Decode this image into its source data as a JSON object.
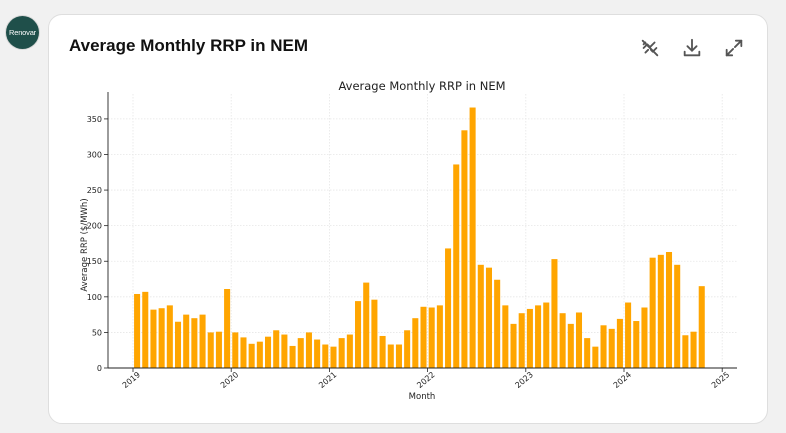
{
  "app": {
    "avatar_text": "Renovar"
  },
  "card": {
    "title": "Average Monthly RRP in NEM"
  },
  "toolbar": {
    "buttons": [
      {
        "name": "hide-chart-button",
        "icon": "chart-off-icon"
      },
      {
        "name": "download-button",
        "icon": "download-icon"
      },
      {
        "name": "expand-button",
        "icon": "expand-icon"
      }
    ]
  },
  "colors": {
    "bar": "#FFA500",
    "grid": "#e6e6e6",
    "axis": "#222222"
  },
  "chart_data": {
    "type": "bar",
    "title": "Average Monthly RRP in NEM",
    "xlabel": "Month",
    "ylabel": "Average RRP ($/MWh)",
    "ylim": [
      0,
      385
    ],
    "yticks": [
      0,
      50,
      100,
      150,
      200,
      250,
      300,
      350
    ],
    "xticks": [
      "2019",
      "2020",
      "2021",
      "2022",
      "2023",
      "2024",
      "2025"
    ],
    "grid": true,
    "series": [
      {
        "x": [
          "2019-01",
          "2019-02",
          "2019-03",
          "2019-04",
          "2019-05",
          "2019-06",
          "2019-07",
          "2019-08",
          "2019-09",
          "2019-10",
          "2019-11",
          "2019-12",
          "2020-01",
          "2020-02",
          "2020-03",
          "2020-04",
          "2020-05",
          "2020-06",
          "2020-07",
          "2020-08",
          "2020-09",
          "2020-10",
          "2020-11",
          "2020-12",
          "2021-01",
          "2021-02",
          "2021-03",
          "2021-04",
          "2021-05",
          "2021-06",
          "2021-07",
          "2021-08",
          "2021-09",
          "2021-10",
          "2021-11",
          "2021-12",
          "2022-01",
          "2022-02",
          "2022-03",
          "2022-04",
          "2022-05",
          "2022-06",
          "2022-07",
          "2022-08",
          "2022-09",
          "2022-10",
          "2022-11",
          "2022-12",
          "2023-01",
          "2023-02",
          "2023-03",
          "2023-04",
          "2023-05",
          "2023-06",
          "2023-07",
          "2023-08",
          "2023-09",
          "2023-10",
          "2023-11",
          "2023-12",
          "2024-01",
          "2024-02",
          "2024-03",
          "2024-04",
          "2024-05",
          "2024-06",
          "2024-07",
          "2024-08",
          "2024-09",
          "2024-10"
        ],
        "values": [
          104,
          107,
          82,
          84,
          88,
          65,
          75,
          70,
          75,
          50,
          51,
          111,
          50,
          43,
          34,
          37,
          44,
          53,
          47,
          31,
          42,
          50,
          40,
          33,
          30,
          42,
          47,
          94,
          120,
          96,
          45,
          33,
          33,
          53,
          70,
          86,
          85,
          88,
          168,
          286,
          334,
          366,
          145,
          141,
          124,
          88,
          62,
          77,
          83,
          88,
          92,
          153,
          77,
          62,
          78,
          42,
          30,
          60,
          55,
          69,
          92,
          66,
          85,
          155,
          159,
          163,
          145,
          46,
          51,
          115
        ]
      }
    ]
  }
}
